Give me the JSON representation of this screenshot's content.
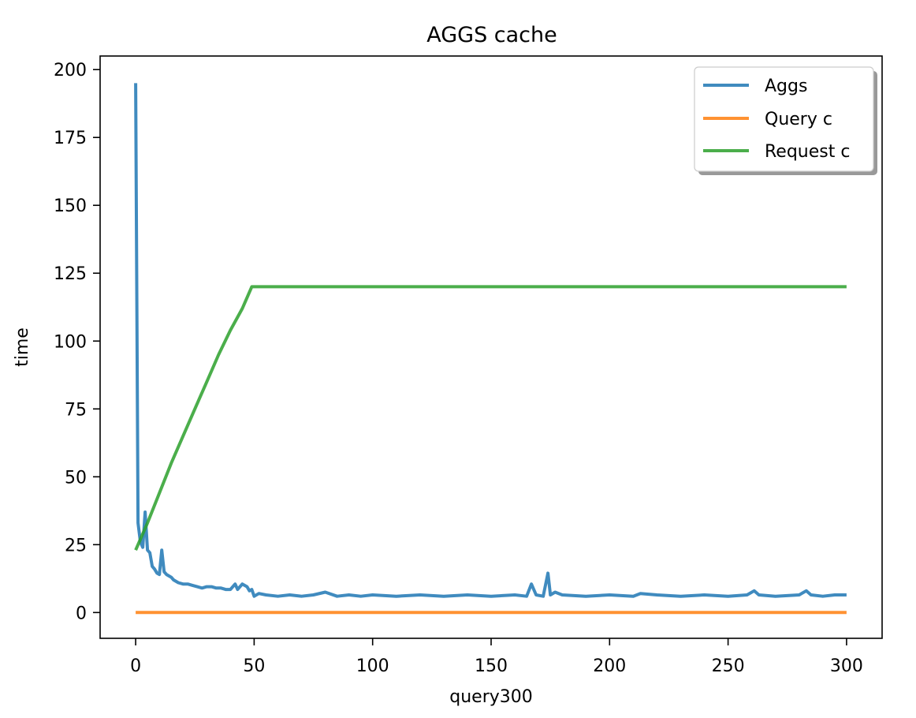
{
  "chart_data": {
    "type": "line",
    "title": "AGGS cache",
    "xlabel": "query300",
    "ylabel": "time",
    "xlim": [
      -15,
      315
    ],
    "ylim": [
      -9.5,
      205
    ],
    "xticks": [
      0,
      50,
      100,
      150,
      200,
      250,
      300
    ],
    "yticks": [
      0,
      25,
      50,
      75,
      100,
      125,
      150,
      175,
      200
    ],
    "grid": false,
    "legend_position": "top-right",
    "series": [
      {
        "name": "Aggs",
        "color": "#1f77b4",
        "points": [
          [
            0,
            195
          ],
          [
            1,
            33
          ],
          [
            2,
            26
          ],
          [
            3,
            24
          ],
          [
            4,
            37
          ],
          [
            5,
            23
          ],
          [
            6,
            22
          ],
          [
            7,
            17
          ],
          [
            8,
            16
          ],
          [
            9,
            14.5
          ],
          [
            10,
            14
          ],
          [
            11,
            23
          ],
          [
            12,
            15
          ],
          [
            13,
            14
          ],
          [
            14,
            13.5
          ],
          [
            15,
            13
          ],
          [
            16,
            12
          ],
          [
            18,
            11
          ],
          [
            20,
            10.5
          ],
          [
            22,
            10.5
          ],
          [
            24,
            10
          ],
          [
            26,
            9.5
          ],
          [
            28,
            9
          ],
          [
            30,
            9.5
          ],
          [
            32,
            9.5
          ],
          [
            34,
            9
          ],
          [
            36,
            9
          ],
          [
            38,
            8.5
          ],
          [
            40,
            8.5
          ],
          [
            42,
            10.5
          ],
          [
            43,
            8.5
          ],
          [
            45,
            10.5
          ],
          [
            47,
            9.5
          ],
          [
            48,
            8
          ],
          [
            49,
            8.5
          ],
          [
            50,
            6
          ],
          [
            52,
            7
          ],
          [
            55,
            6.5
          ],
          [
            60,
            6
          ],
          [
            65,
            6.5
          ],
          [
            70,
            6
          ],
          [
            75,
            6.5
          ],
          [
            80,
            7.5
          ],
          [
            85,
            6
          ],
          [
            90,
            6.5
          ],
          [
            95,
            6
          ],
          [
            100,
            6.5
          ],
          [
            110,
            6
          ],
          [
            120,
            6.5
          ],
          [
            130,
            6
          ],
          [
            140,
            6.5
          ],
          [
            150,
            6
          ],
          [
            160,
            6.5
          ],
          [
            165,
            6
          ],
          [
            167,
            10.5
          ],
          [
            169,
            6.5
          ],
          [
            172,
            6
          ],
          [
            174,
            14.5
          ],
          [
            175,
            6.5
          ],
          [
            177,
            7.5
          ],
          [
            180,
            6.5
          ],
          [
            190,
            6
          ],
          [
            200,
            6.5
          ],
          [
            210,
            6
          ],
          [
            213,
            7
          ],
          [
            220,
            6.5
          ],
          [
            230,
            6
          ],
          [
            240,
            6.5
          ],
          [
            250,
            6
          ],
          [
            258,
            6.5
          ],
          [
            261,
            8
          ],
          [
            263,
            6.5
          ],
          [
            270,
            6
          ],
          [
            280,
            6.5
          ],
          [
            283,
            8
          ],
          [
            285,
            6.5
          ],
          [
            290,
            6
          ],
          [
            295,
            6.5
          ],
          [
            300,
            6.5
          ]
        ]
      },
      {
        "name": "Query c",
        "color": "#ff7f0e",
        "points": [
          [
            0,
            0
          ],
          [
            300,
            0
          ]
        ]
      },
      {
        "name": "Request c",
        "color": "#2ca02c",
        "points": [
          [
            0,
            23
          ],
          [
            5,
            33
          ],
          [
            10,
            44
          ],
          [
            15,
            55
          ],
          [
            20,
            65
          ],
          [
            25,
            75
          ],
          [
            30,
            85
          ],
          [
            35,
            95
          ],
          [
            40,
            104
          ],
          [
            45,
            112
          ],
          [
            49,
            120
          ],
          [
            300,
            120
          ]
        ]
      }
    ]
  }
}
